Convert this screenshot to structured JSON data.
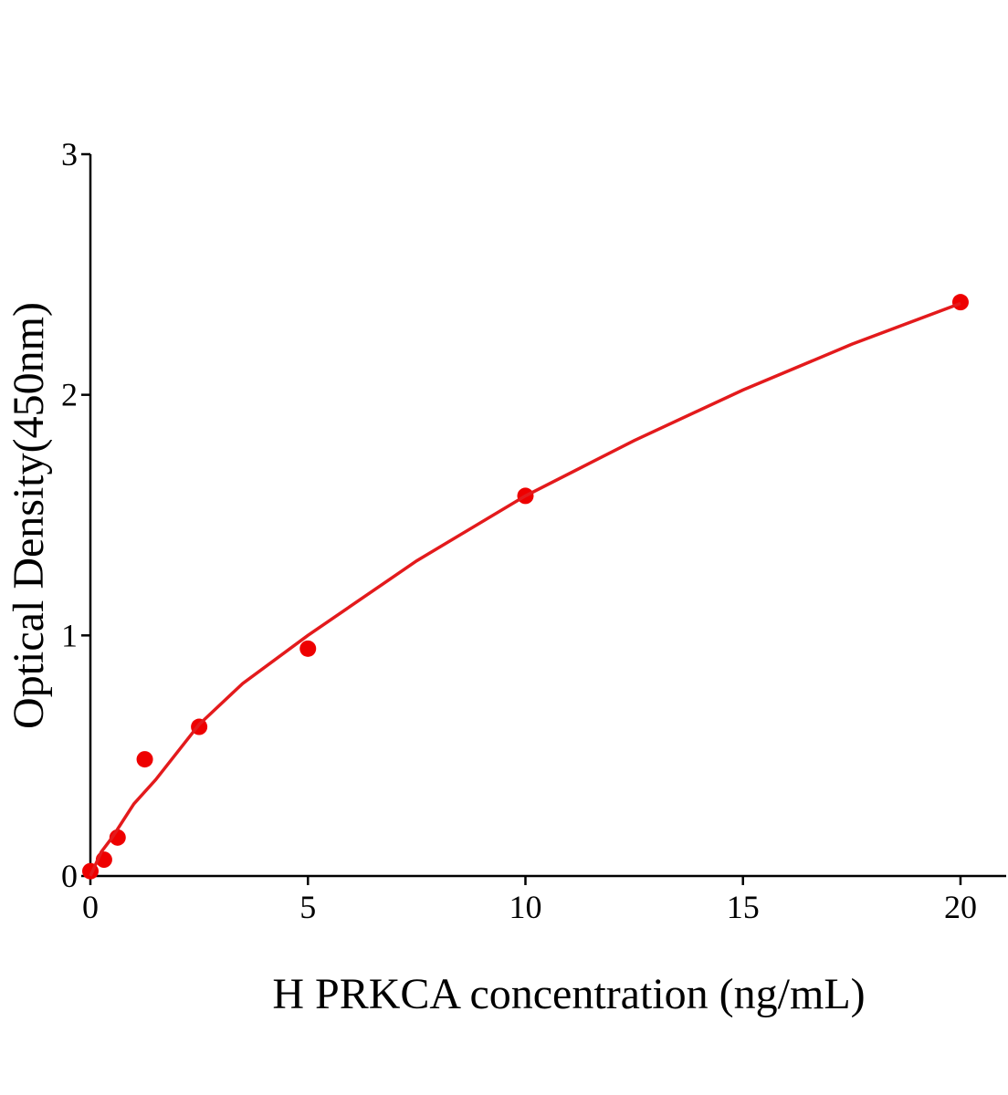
{
  "chart_data": {
    "type": "scatter",
    "x_label": "H PRKCA concentration (ng/mL)",
    "y_label": "Optical Density(450nm)",
    "xlim": [
      0,
      21.05
    ],
    "xticks": [
      0,
      5,
      10,
      15,
      20
    ],
    "ylim": [
      0,
      3
    ],
    "yticks": [
      0,
      1,
      2,
      3
    ],
    "grid": false,
    "series": [
      {
        "mode": "markers",
        "color": "#ee0000",
        "x": [
          0,
          0.3125,
          0.625,
          1.25,
          2.5,
          5,
          10,
          20
        ],
        "values": [
          0.02,
          0.068,
          0.16,
          0.485,
          0.62,
          0.945,
          1.58,
          2.385
        ]
      },
      {
        "mode": "line",
        "color": "#e31a1c",
        "x": [
          0,
          0.25,
          0.5,
          1,
          1.5,
          2.5,
          3.5,
          5,
          7.5,
          10,
          12.5,
          15,
          17.5,
          20
        ],
        "values": [
          0,
          0.1,
          0.16,
          0.3,
          0.4,
          0.63,
          0.8,
          1.0,
          1.31,
          1.58,
          1.81,
          2.02,
          2.21,
          2.38
        ]
      }
    ]
  }
}
